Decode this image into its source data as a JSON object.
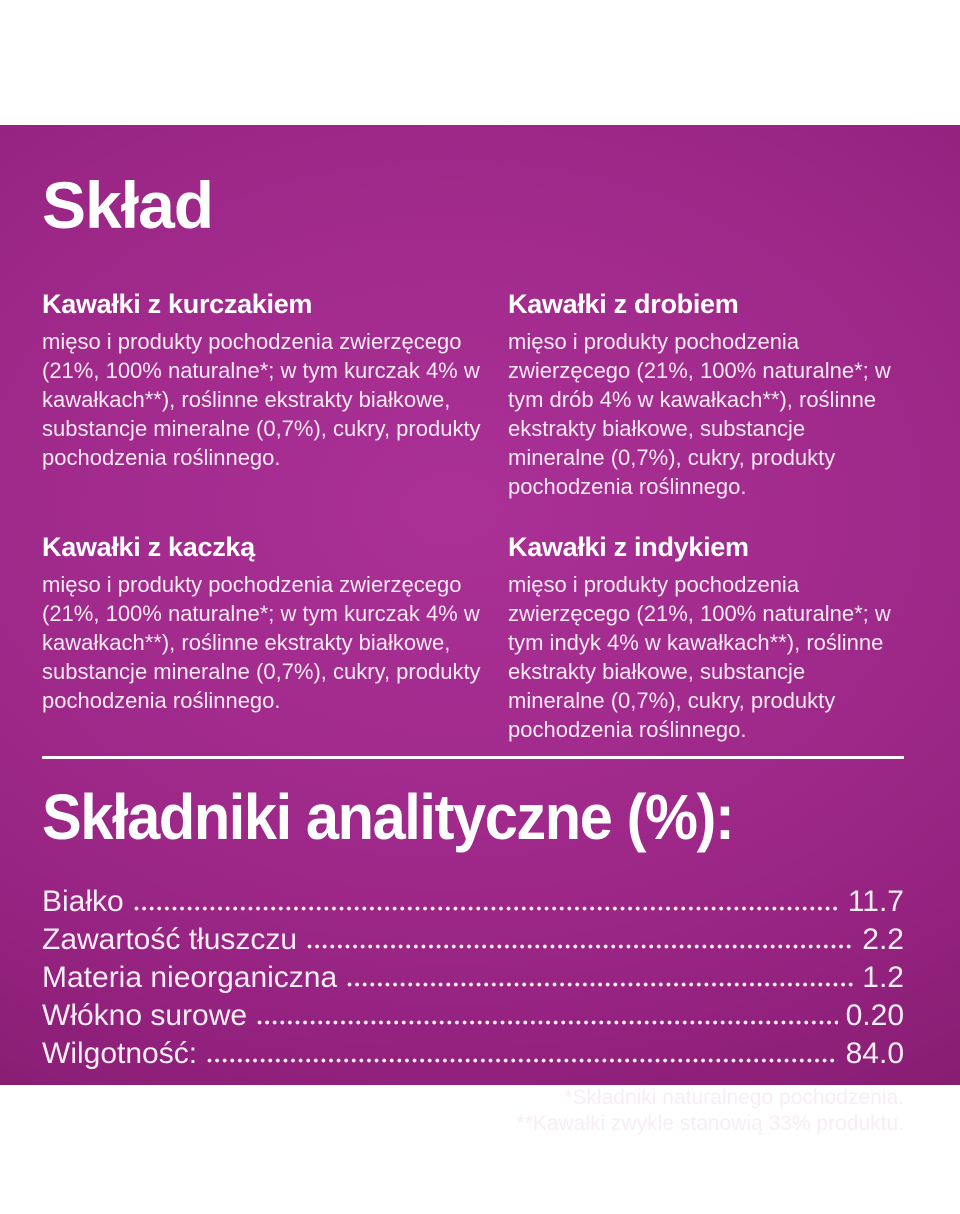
{
  "colors": {
    "panel_magenta_center": "#a22b8e",
    "panel_magenta_edge": "#871d72",
    "text_white": "#ffffff"
  },
  "panel": {
    "title": "Skład",
    "sections": [
      {
        "heading": "Kawałki z kurczakiem",
        "body": "mięso i produkty pochodzenia zwierzęcego (21%, 100% naturalne*; w tym kurczak 4% w kawałkach**), roślinne ekstrakty białkowe, substancje mineralne (0,7%), cukry, produkty pochodzenia roślinnego."
      },
      {
        "heading": "Kawałki z drobiem",
        "body": "mięso i produkty pochodzenia zwierzęcego (21%, 100% naturalne*; w tym drób 4% w kawałkach**), roślinne ekstrakty białkowe, substancje mineralne (0,7%), cukry, produkty pochodzenia roślinnego."
      },
      {
        "heading": "Kawałki z kaczką",
        "body": "mięso i produkty pochodzenia zwierzęcego (21%, 100% naturalne*; w tym kurczak 4% w kawałkach**), roślinne ekstrakty białkowe, substancje mineralne (0,7%), cukry, produkty pochodzenia roślinnego."
      },
      {
        "heading": "Kawałki z indykiem",
        "body": "mięso i produkty pochodzenia zwierzęcego (21%, 100% naturalne*; w tym indyk 4% w kawałkach**), roślinne ekstrakty białkowe, substancje mineralne (0,7%), cukry, produkty pochodzenia roślinnego."
      }
    ]
  },
  "analytical": {
    "heading": "Składniki analityczne (%):",
    "rows": [
      {
        "label": "Białko",
        "value": "11.7"
      },
      {
        "label": "Zawartość tłuszczu",
        "value": "2.2"
      },
      {
        "label": "Materia nieorganiczna",
        "value": "1.2"
      },
      {
        "label": "Włókno surowe",
        "value": "0.20"
      },
      {
        "label": "Wilgotność:",
        "value": "84.0"
      }
    ]
  },
  "footnotes": [
    "*Składniki naturalnego pochodzenia.",
    "**Kawałki zwykle stanowią 33% produktu."
  ]
}
